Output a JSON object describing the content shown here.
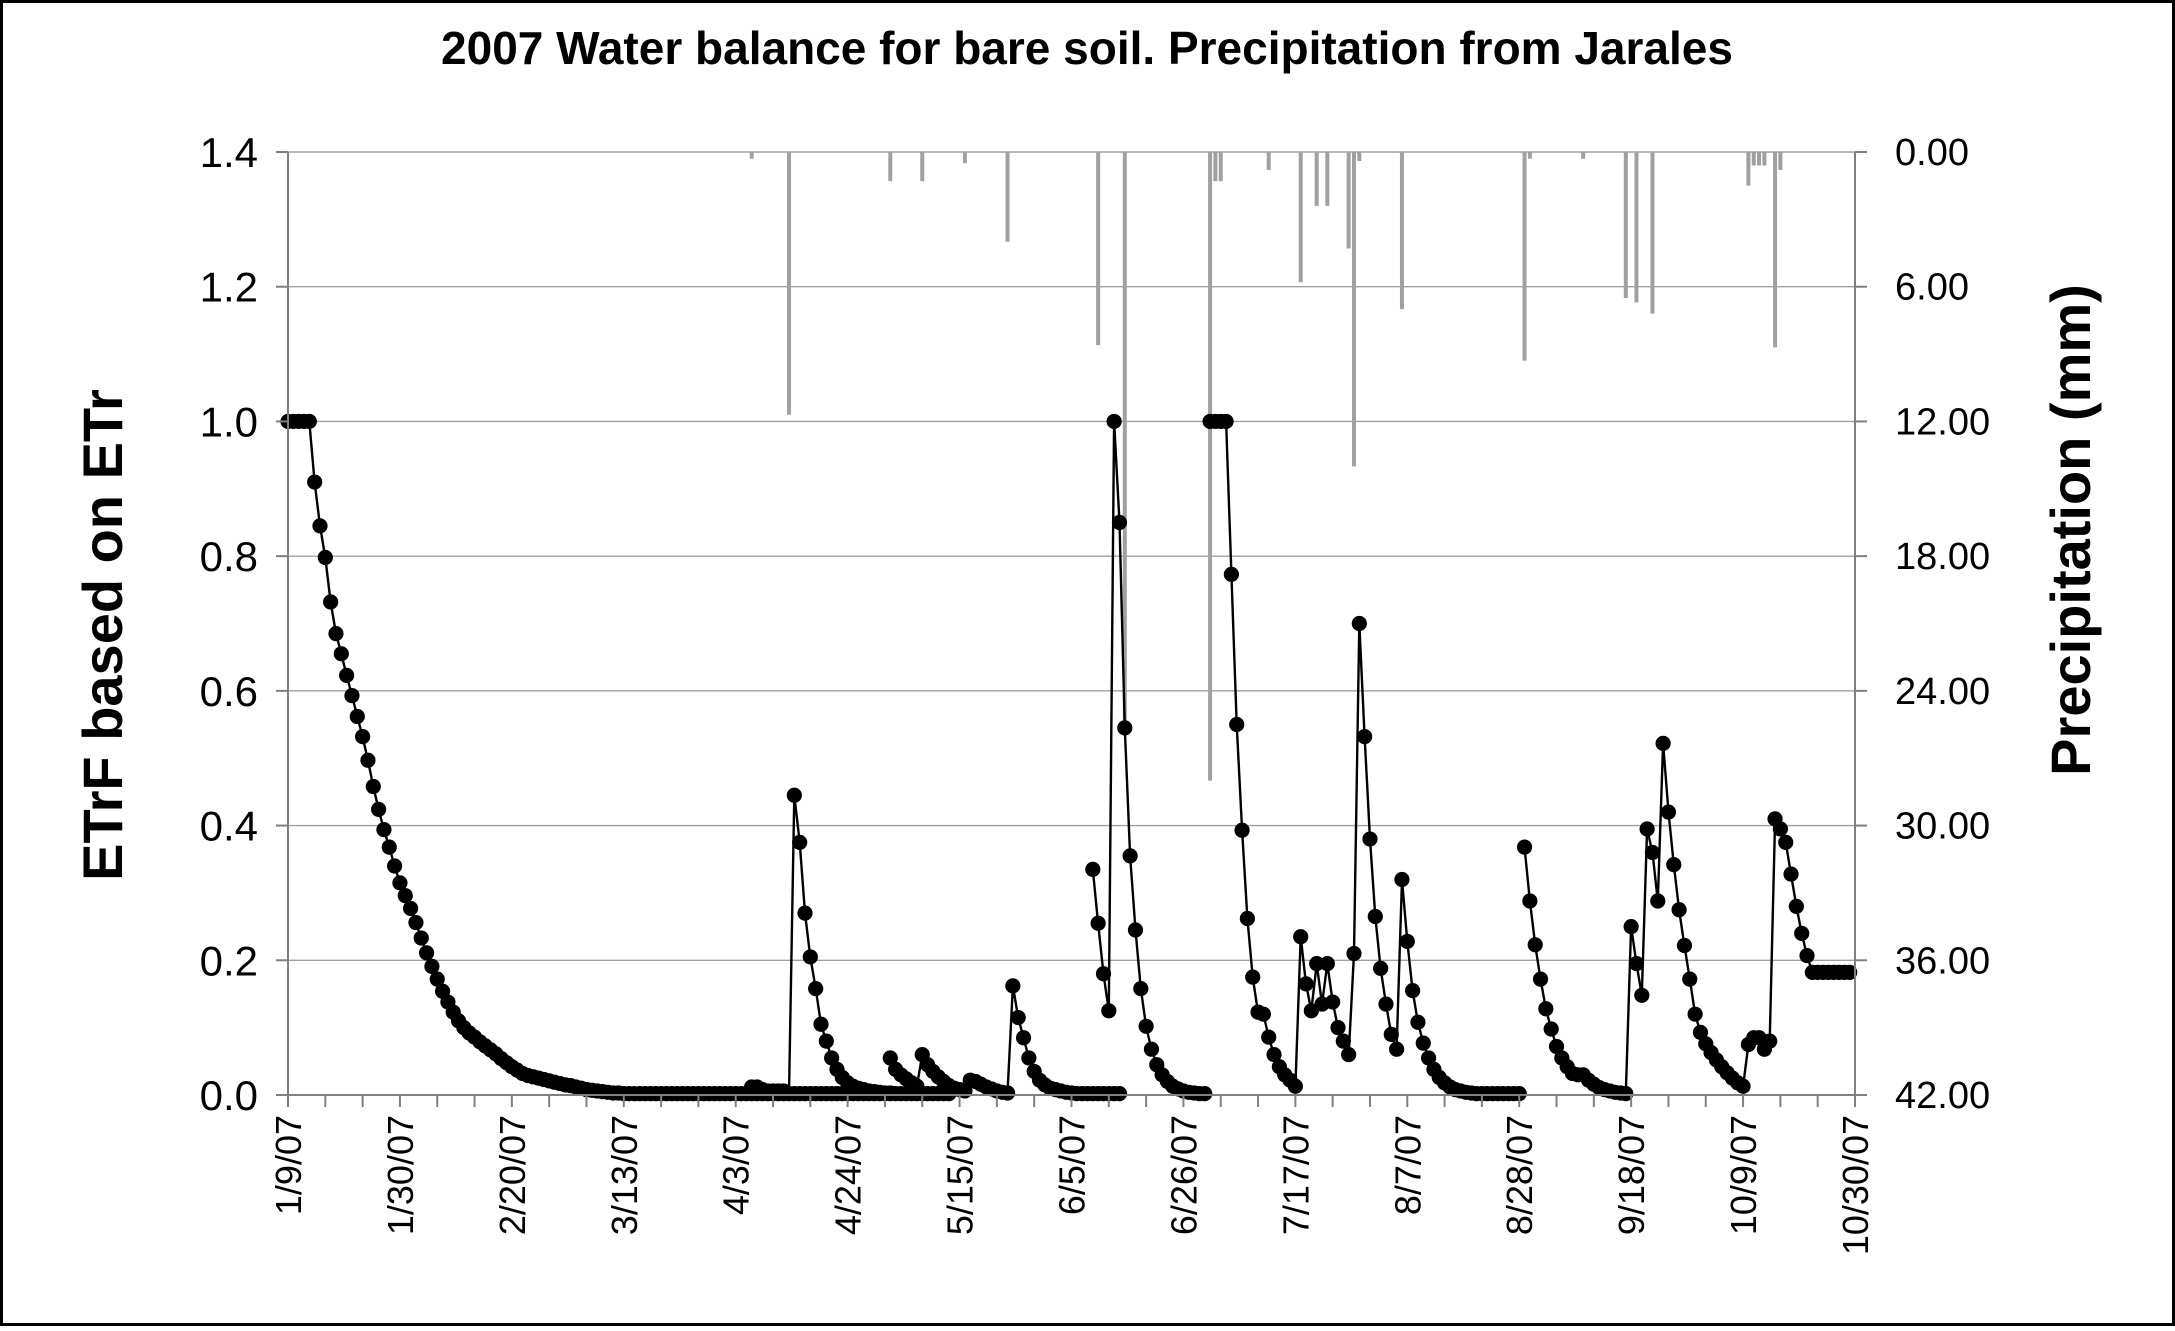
{
  "chart_data": {
    "type": "line",
    "title": "2007 Water balance for bare soil. Precipitation from Jarales",
    "ylabel": "ETrF based on ETr",
    "y2label": "Precipitation (mm)",
    "ylim": [
      0,
      1.4
    ],
    "y2lim": [
      0,
      42
    ],
    "y2_inverted": true,
    "x_start": "1/9/07",
    "x_end": "10/30/07",
    "grid": true,
    "yticks": [
      "0.0",
      "0.2",
      "0.4",
      "0.6",
      "0.8",
      "1.0",
      "1.2",
      "1.4"
    ],
    "y2ticks": [
      "42.00",
      "36.00",
      "30.00",
      "24.00",
      "18.00",
      "12.00",
      "6.00",
      "0.00"
    ],
    "xticks": [
      {
        "label": "1/9/07",
        "day": 0
      },
      {
        "label": "1/30/07",
        "day": 21
      },
      {
        "label": "2/20/07",
        "day": 42
      },
      {
        "label": "3/13/07",
        "day": 63
      },
      {
        "label": "4/3/07",
        "day": 84
      },
      {
        "label": "4/24/07",
        "day": 105
      },
      {
        "label": "5/15/07",
        "day": 126
      },
      {
        "label": "6/5/07",
        "day": 147
      },
      {
        "label": "6/26/07",
        "day": 168
      },
      {
        "label": "7/17/07",
        "day": 189
      },
      {
        "label": "8/7/07",
        "day": 210
      },
      {
        "label": "8/28/07",
        "day": 231
      },
      {
        "label": "9/18/07",
        "day": 252
      },
      {
        "label": "10/9/07",
        "day": 273
      },
      {
        "label": "10/30/07",
        "day": 294
      }
    ],
    "series": [
      {
        "name": "ETrF",
        "segments": [
          {
            "start": 0,
            "values": [
              1.0,
              1.0,
              1.0,
              1.0,
              1.0,
              0.91,
              0.845,
              0.798,
              0.732,
              0.685,
              0.655,
              0.623,
              0.593,
              0.562,
              0.532,
              0.497,
              0.458,
              0.424,
              0.394,
              0.368,
              0.34,
              0.315,
              0.296,
              0.277,
              0.256,
              0.233,
              0.211,
              0.191,
              0.172,
              0.154,
              0.138,
              0.123,
              0.11,
              0.1,
              0.092,
              0.086,
              0.079,
              0.073,
              0.067,
              0.061,
              0.054,
              0.048,
              0.042,
              0.037,
              0.032,
              0.029,
              0.027,
              0.025,
              0.023,
              0.021,
              0.019,
              0.017,
              0.015,
              0.014,
              0.012,
              0.01,
              0.008,
              0.007,
              0.006,
              0.005,
              0.004,
              0.003,
              0.003
            ]
          },
          {
            "start": 63,
            "values": [
              0.002,
              0.002,
              0.002,
              0.002,
              0.002,
              0.002,
              0.002,
              0.002,
              0.002,
              0.002,
              0.002,
              0.002,
              0.002,
              0.002,
              0.002,
              0.002,
              0.002,
              0.002,
              0.002,
              0.002,
              0.002,
              0.002,
              0.002,
              0.002,
              0.002,
              0.002,
              0.002,
              0.002,
              0.002,
              0.002,
              0.002,
              0.002,
              0.002,
              0.002,
              0.002,
              0.002,
              0.002,
              0.002,
              0.002,
              0.002,
              0.002,
              0.002,
              0.002,
              0.002,
              0.002,
              0.002,
              0.002,
              0.002,
              0.002,
              0.002,
              0.002,
              0.002,
              0.002,
              0.002,
              0.002,
              0.002,
              0.002,
              0.002,
              0.002,
              0.002,
              0.002,
              0.002
            ]
          },
          {
            "start": 82,
            "values": [
              0.002,
              0.002,
              0.002,
              0.002,
              0.002,
              0.012,
              0.012,
              0.008,
              0.006,
              0.006,
              0.006,
              0.006,
              0.002,
              0.445,
              0.375,
              0.27,
              0.205,
              0.158,
              0.105,
              0.08,
              0.055,
              0.038,
              0.026,
              0.018,
              0.013,
              0.01,
              0.008,
              0.006,
              0.005,
              0.004,
              0.003,
              0.003,
              0.002
            ]
          },
          {
            "start": 113,
            "values": [
              0.055,
              0.038,
              0.03,
              0.024,
              0.018,
              0.013,
              0.06,
              0.045,
              0.035,
              0.027,
              0.02,
              0.014,
              0.01,
              0.008,
              0.006,
              0.022,
              0.02,
              0.016,
              0.012,
              0.009,
              0.006,
              0.004,
              0.003,
              0.162,
              0.115,
              0.085,
              0.055,
              0.035,
              0.022,
              0.015,
              0.01,
              0.008,
              0.006,
              0.004,
              0.003,
              0.002,
              0.002,
              0.002,
              0.002,
              0.002,
              0.002,
              0.002,
              0.002,
              0.002
            ]
          },
          {
            "start": 151,
            "values": [
              0.335,
              0.255,
              0.18,
              0.125,
              1.0,
              0.85,
              0.545,
              0.355,
              0.245,
              0.158,
              0.102,
              0.068,
              0.045,
              0.03,
              0.02,
              0.013,
              0.009,
              0.006,
              0.004,
              0.003,
              0.002,
              0.002
            ]
          },
          {
            "start": 173,
            "values": [
              1.0,
              1.0,
              1.0,
              1.0,
              0.773,
              0.55,
              0.393,
              0.262,
              0.175,
              0.123,
              0.12,
              0.086,
              0.06,
              0.042,
              0.03,
              0.022,
              0.013,
              0.235,
              0.165,
              0.125,
              0.195,
              0.135,
              0.195,
              0.138,
              0.1,
              0.08,
              0.06,
              0.21,
              0.7,
              0.532,
              0.38,
              0.265,
              0.188,
              0.135,
              0.09,
              0.068,
              0.32,
              0.228,
              0.155,
              0.108,
              0.077,
              0.055,
              0.038,
              0.026,
              0.018,
              0.012,
              0.008,
              0.006,
              0.004,
              0.003,
              0.002,
              0.002,
              0.002,
              0.002,
              0.002,
              0.002,
              0.002,
              0.002,
              0.002
            ]
          },
          {
            "start": 232,
            "values": [
              0.368,
              0.288,
              0.223,
              0.172,
              0.128,
              0.098,
              0.072,
              0.055,
              0.042,
              0.032,
              0.03,
              0.03,
              0.022,
              0.016,
              0.011,
              0.008,
              0.006,
              0.004,
              0.003,
              0.002,
              0.25,
              0.195,
              0.148,
              0.395,
              0.36,
              0.288,
              0.522,
              0.42,
              0.342,
              0.275,
              0.222,
              0.172,
              0.12,
              0.093,
              0.076,
              0.063,
              0.052,
              0.042,
              0.033,
              0.025,
              0.018,
              0.013,
              0.075,
              0.085,
              0.085,
              0.068,
              0.08,
              0.41,
              0.395,
              0.375,
              0.328,
              0.28,
              0.24,
              0.207,
              0.182,
              0.182,
              0.182,
              0.182,
              0.182,
              0.182,
              0.182,
              0.182
            ]
          }
        ]
      },
      {
        "name": "Precipitation (mm)",
        "axis": "right",
        "bars": [
          {
            "day": 87,
            "value": 0.3
          },
          {
            "day": 94,
            "value": 11.7
          },
          {
            "day": 113,
            "value": 1.3
          },
          {
            "day": 119,
            "value": 1.3
          },
          {
            "day": 127,
            "value": 0.5
          },
          {
            "day": 135,
            "value": 4.0
          },
          {
            "day": 152,
            "value": 8.6
          },
          {
            "day": 157,
            "value": 26.0
          },
          {
            "day": 173,
            "value": 28.0
          },
          {
            "day": 174,
            "value": 1.3
          },
          {
            "day": 175,
            "value": 1.3
          },
          {
            "day": 184,
            "value": 0.8
          },
          {
            "day": 190,
            "value": 5.8
          },
          {
            "day": 193,
            "value": 2.4
          },
          {
            "day": 195,
            "value": 2.4
          },
          {
            "day": 199,
            "value": 4.3
          },
          {
            "day": 200,
            "value": 14.0
          },
          {
            "day": 201,
            "value": 0.4
          },
          {
            "day": 209,
            "value": 7.0
          },
          {
            "day": 232,
            "value": 9.3
          },
          {
            "day": 233,
            "value": 0.3
          },
          {
            "day": 243,
            "value": 0.3
          },
          {
            "day": 251,
            "value": 6.5
          },
          {
            "day": 253,
            "value": 6.7
          },
          {
            "day": 256,
            "value": 7.2
          },
          {
            "day": 274,
            "value": 1.5
          },
          {
            "day": 275,
            "value": 0.6
          },
          {
            "day": 276,
            "value": 0.6
          },
          {
            "day": 277,
            "value": 0.6
          },
          {
            "day": 279,
            "value": 8.7
          },
          {
            "day": 280,
            "value": 0.8
          }
        ]
      }
    ]
  }
}
